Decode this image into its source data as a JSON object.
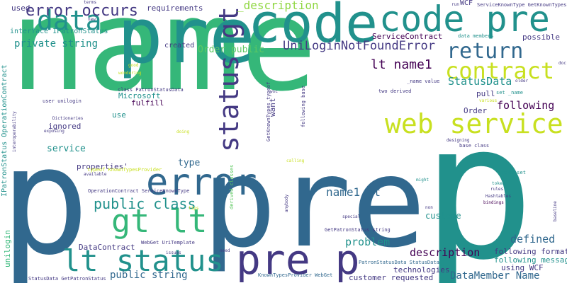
{
  "palette": {
    "green": "#35b779",
    "teal": "#21918c",
    "blue": "#31688e",
    "indigo": "#443983",
    "purple": "#440154",
    "yellow": "#c8e020",
    "lime": "#90d743",
    "mint": "#5ec962"
  },
  "words": [
    {
      "text": "name",
      "color": "green"
    },
    {
      "text": "p",
      "color": "blue"
    },
    {
      "text": "pre",
      "color": "blue"
    },
    {
      "text": "p",
      "color": "teal"
    },
    {
      "text": "pre",
      "color": "teal"
    },
    {
      "text": "code pre",
      "color": "teal"
    },
    {
      "text": "pre p",
      "color": "indigo"
    },
    {
      "text": "web service",
      "color": "yellow"
    },
    {
      "text": "error",
      "color": "blue"
    },
    {
      "text": "lt status",
      "color": "teal"
    },
    {
      "text": "gt lt",
      "color": "green"
    },
    {
      "text": "status gt",
      "color": "indigo"
    },
    {
      "text": "data",
      "color": "teal"
    },
    {
      "text": "contract",
      "color": "yellow"
    },
    {
      "text": "return",
      "color": "blue"
    },
    {
      "text": "code",
      "color": "teal"
    },
    {
      "text": "error occurs",
      "color": "indigo"
    },
    {
      "text": "lt name1",
      "color": "purple"
    },
    {
      "text": "UniLoginNotFoundError",
      "color": "indigo"
    },
    {
      "text": "public class",
      "color": "teal"
    },
    {
      "text": "_description",
      "color": "lime"
    },
    {
      "text": "StatusData",
      "color": "teal"
    },
    {
      "text": "following",
      "color": "purple"
    },
    {
      "text": "defined",
      "color": "blue"
    },
    {
      "text": "problem",
      "color": "teal"
    },
    {
      "text": "description",
      "color": "purple"
    },
    {
      "text": "DataMember Name",
      "color": "blue"
    },
    {
      "text": "name1 gt",
      "color": "blue"
    },
    {
      "text": "public string",
      "color": "blue"
    },
    {
      "text": "private string",
      "color": "teal"
    },
    {
      "text": "Order public",
      "color": "mint"
    },
    {
      "text": "requirements",
      "color": "indigo"
    },
    {
      "text": "IPatronStatus OperationContract",
      "color": "teal"
    },
    {
      "text": "interface IPatronStatus",
      "color": "teal"
    },
    {
      "text": "used",
      "color": "indigo"
    },
    {
      "text": "ServiceContract",
      "color": "purple"
    },
    {
      "text": "fulfill",
      "color": "purple"
    },
    {
      "text": "Microsoft",
      "color": "teal"
    },
    {
      "text": "service",
      "color": "teal"
    },
    {
      "text": "type",
      "color": "blue"
    },
    {
      "text": "properties'",
      "color": "indigo"
    },
    {
      "text": "use",
      "color": "teal"
    },
    {
      "text": "ignored",
      "color": "indigo"
    },
    {
      "text": "want",
      "color": "indigo"
    },
    {
      "text": "pull",
      "color": "indigo"
    },
    {
      "text": "Order",
      "color": "indigo"
    },
    {
      "text": "DataContract",
      "color": "indigo"
    },
    {
      "text": "unilogin",
      "color": "green"
    },
    {
      "text": "custome",
      "color": "teal"
    },
    {
      "text": "technologies",
      "color": "indigo"
    },
    {
      "text": "customer requested",
      "color": "indigo"
    },
    {
      "text": "following format",
      "color": "indigo"
    },
    {
      "text": "following message",
      "color": "teal"
    },
    {
      "text": "using WCF",
      "color": "indigo"
    },
    {
      "text": "possible",
      "color": "indigo"
    },
    {
      "text": "created",
      "color": "indigo"
    },
    {
      "text": "WCF",
      "color": "indigo"
    },
    {
      "text": "ServiceKnownType GetKnownTypes",
      "color": "indigo"
    },
    {
      "text": "GetPatronStatus string",
      "color": "indigo"
    },
    {
      "text": "PatronStatusData StatusData",
      "color": "blue"
    },
    {
      "text": "WebGet UriTemplate",
      "color": "indigo"
    },
    {
      "text": "OperationContract ServiceKnownType",
      "color": "indigo"
    },
    {
      "text": "class PatronStatusData",
      "color": "indigo"
    },
    {
      "text": "two derived",
      "color": "indigo"
    },
    {
      "text": "_name value",
      "color": "indigo"
    },
    {
      "text": "set _name",
      "color": "teal"
    },
    {
      "text": "user unilogin",
      "color": "indigo"
    },
    {
      "text": "GetKnownTypes typeof",
      "color": "indigo"
    },
    {
      "text": "following base",
      "color": "indigo"
    },
    {
      "text": "derived classes",
      "color": "mint"
    },
    {
      "text": "StatusData GetPatronStatus",
      "color": "indigo"
    },
    {
      "text": "KnownTypesProvider WebGet",
      "color": "blue"
    },
    {
      "text": "base class",
      "color": "indigo"
    },
    {
      "text": "_name set",
      "color": "teal"
    },
    {
      "text": "typeof KnownTypesProvider",
      "color": "yellow"
    },
    {
      "text": "data members",
      "color": "teal"
    },
    {
      "text": "Dictionaries",
      "color": "indigo"
    },
    {
      "text": "interoperability",
      "color": "indigo"
    },
    {
      "text": "exposing",
      "color": "indigo"
    },
    {
      "text": "good",
      "color": "yellow"
    },
    {
      "text": "wondering",
      "color": "yellow"
    },
    {
      "text": "terms",
      "color": "indigo"
    },
    {
      "text": "new",
      "color": "indigo"
    },
    {
      "text": "rules",
      "color": "indigo"
    },
    {
      "text": "token",
      "color": "teal"
    },
    {
      "text": "Hashtables",
      "color": "indigo"
    },
    {
      "text": "bindings",
      "color": "purple"
    },
    {
      "text": "special",
      "color": "indigo"
    },
    {
      "text": "need",
      "color": "indigo"
    },
    {
      "text": "issues",
      "color": "indigo"
    },
    {
      "text": "tips",
      "color": "yellow"
    },
    {
      "text": "available",
      "color": "indigo"
    },
    {
      "text": "designing",
      "color": "indigo"
    },
    {
      "text": "older",
      "color": "indigo"
    },
    {
      "text": "various",
      "color": "yellow"
    },
    {
      "text": "doc",
      "color": "indigo"
    },
    {
      "text": "might",
      "color": "teal"
    },
    {
      "text": "non",
      "color": "indigo"
    },
    {
      "text": "anybody",
      "color": "indigo"
    },
    {
      "text": "calling",
      "color": "yellow"
    },
    {
      "text": "wsc",
      "color": "indigo"
    },
    {
      "text": "run",
      "color": "indigo"
    },
    {
      "text": "baseline",
      "color": "indigo"
    },
    {
      "text": "doing",
      "color": "yellow"
    }
  ]
}
